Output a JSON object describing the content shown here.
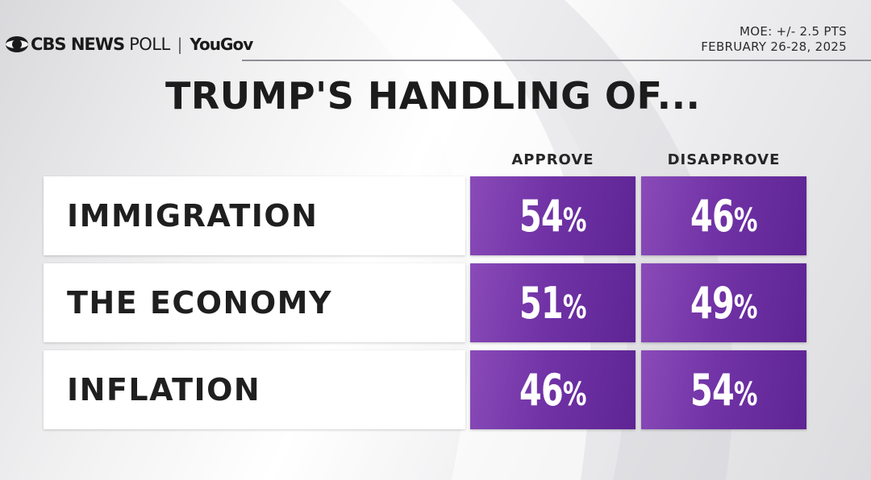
{
  "header": {
    "brand_cbs": "CBS NEWS",
    "brand_poll": "POLL",
    "brand_sep": "|",
    "brand_partner": "YouGov",
    "moe": "MOE: +/- 2.5 PTS",
    "dates": "FEBRUARY 26-28, 2025"
  },
  "chart_data": {
    "type": "table",
    "title": "TRUMP'S HANDLING OF...",
    "columns": [
      "APPROVE",
      "DISAPPROVE"
    ],
    "rows": [
      {
        "label": "IMMIGRATION",
        "approve": 54,
        "disapprove": 46
      },
      {
        "label": "THE ECONOMY",
        "approve": 51,
        "disapprove": 49
      },
      {
        "label": "INFLATION",
        "approve": 46,
        "disapprove": 54
      }
    ],
    "unit": "%",
    "colors": {
      "cell": "#7133a6",
      "label_box": "#ffffff"
    }
  }
}
